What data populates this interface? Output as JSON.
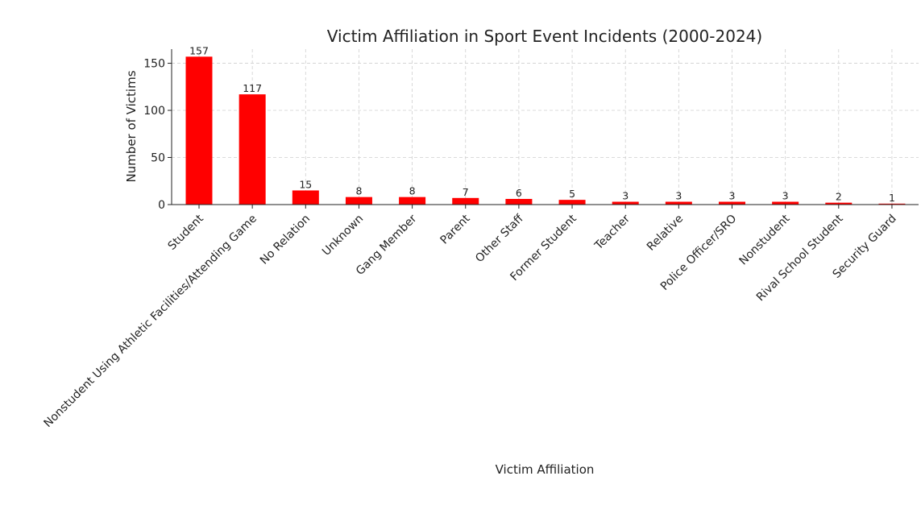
{
  "chart_data": {
    "type": "bar",
    "title": "Victim Affiliation in Sport Event Incidents (2000-2024)",
    "xlabel": "Victim Affiliation",
    "ylabel": "Number of Victims",
    "categories": [
      "Student",
      "Nonstudent Using Athletic Facilities/Attending Game",
      "No Relation",
      "Unknown",
      "Gang Member",
      "Parent",
      "Other Staff",
      "Former Student",
      "Teacher",
      "Relative",
      "Police Officer/SRO",
      "Nonstudent",
      "Rival School Student",
      "Security Guard"
    ],
    "values": [
      157,
      117,
      15,
      8,
      8,
      7,
      6,
      5,
      3,
      3,
      3,
      3,
      2,
      1
    ],
    "ylim": [
      0,
      165
    ],
    "yticks": [
      0,
      50,
      100,
      150
    ],
    "grid": true,
    "bar_color": "#ff0000",
    "legend": "none"
  }
}
